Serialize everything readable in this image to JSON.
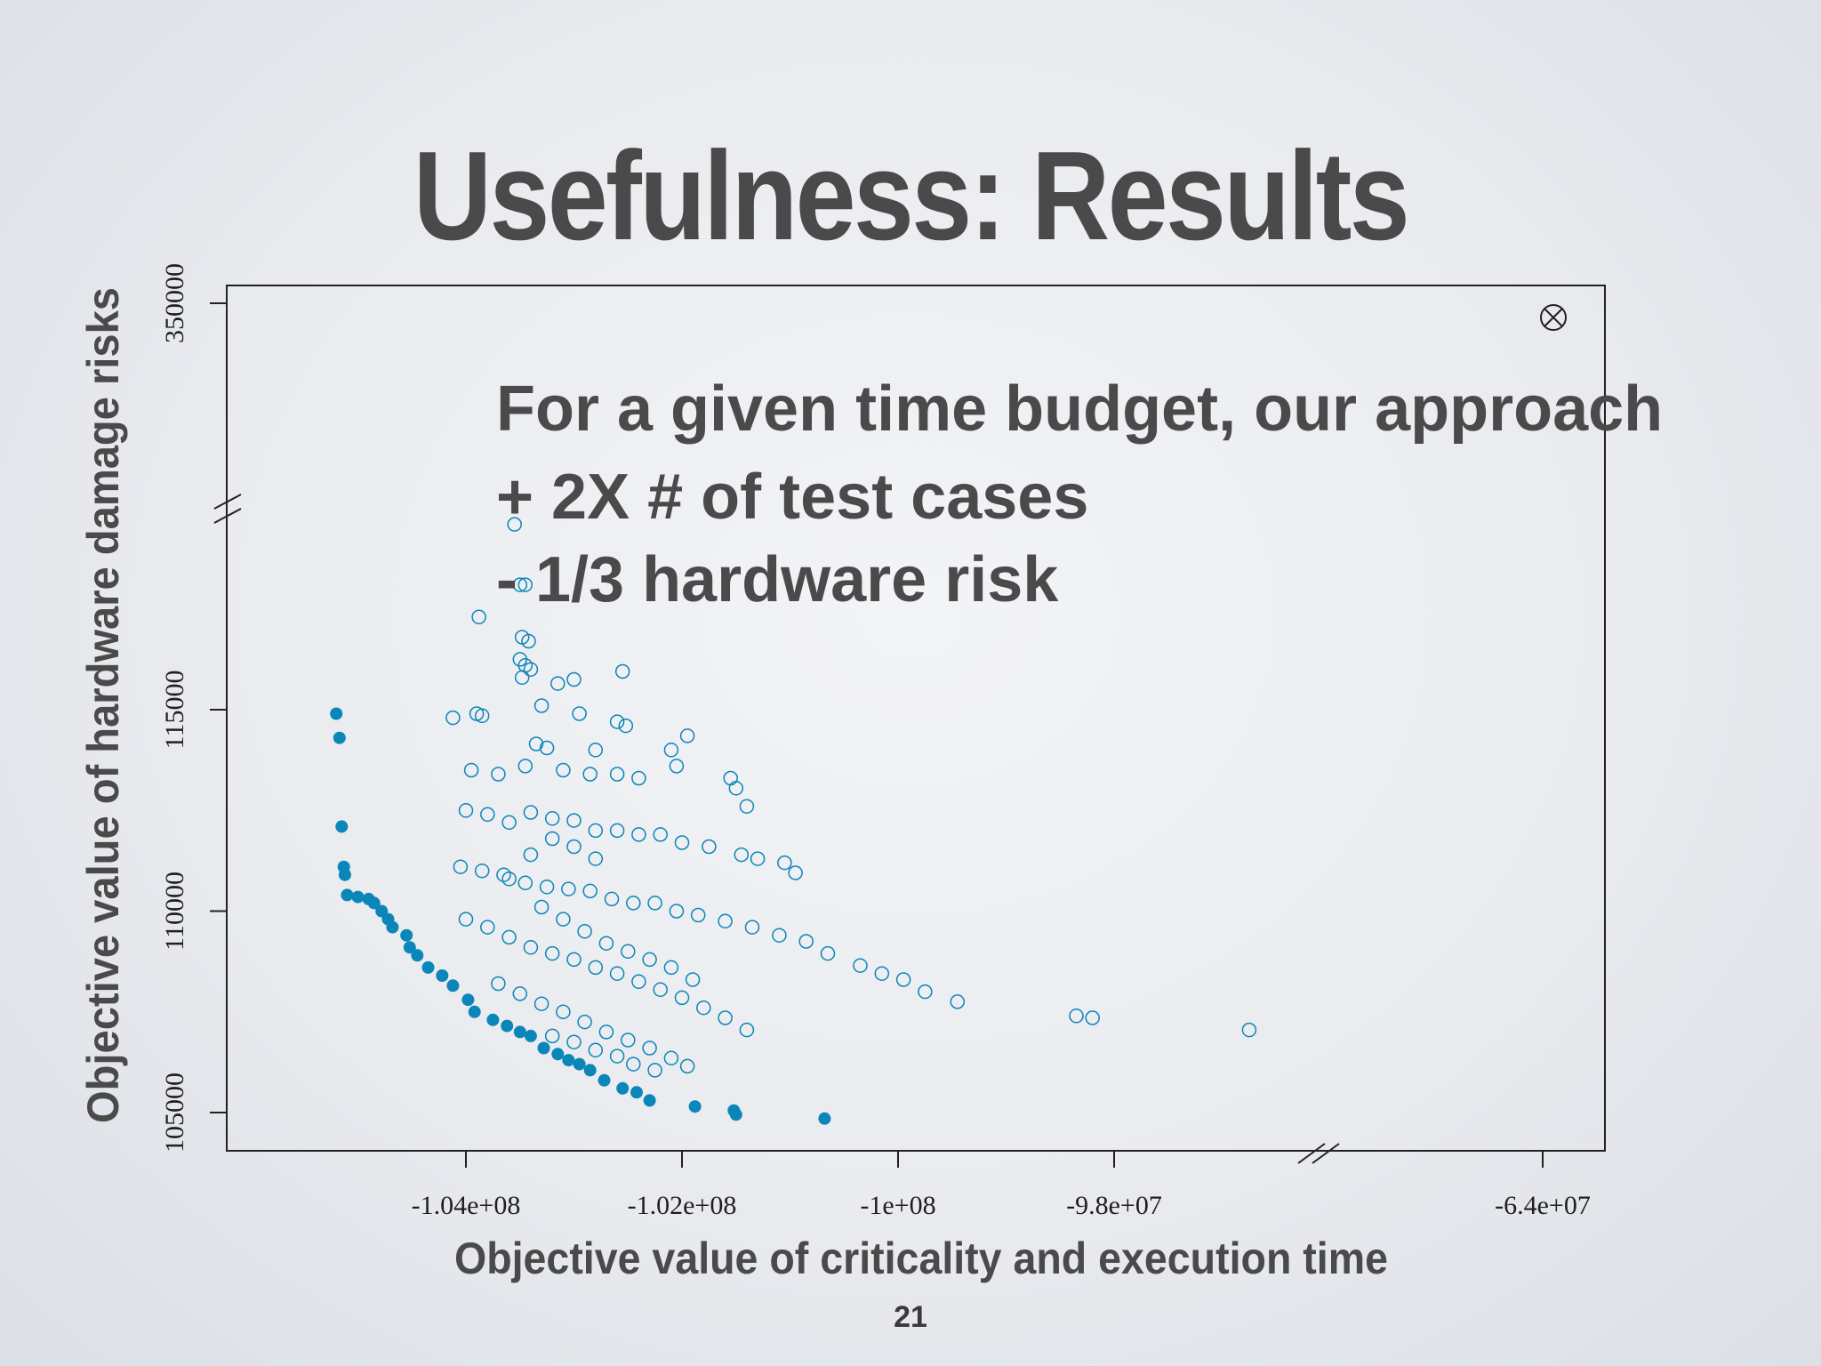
{
  "slide": {
    "title": "Usefulness: Results",
    "page_number": "21",
    "callout_lines": [
      "For a given time budget, our approach",
      "+ 2X # of test cases",
      "- 1/3 hardware risk"
    ]
  },
  "colors": {
    "text": "#4a4a4a",
    "marker": "#0b86b8",
    "axis": "#222222"
  },
  "chart_data": {
    "type": "scatter",
    "title": "Usefulness: Results",
    "xlabel": "Objective value of criticality and execution time",
    "ylabel": "Objective value of hardware damage risks",
    "x_broken_axis": true,
    "y_broken_axis": true,
    "x_segments": [
      [
        -105500000,
        -97000000
      ],
      [
        -64500000,
        -63500000
      ]
    ],
    "y_segments": [
      [
        104000000,
        120000000
      ],
      [
        349000000,
        351000000
      ]
    ],
    "x_ticks": [
      {
        "value": -104000000,
        "label": "-1.04e+08"
      },
      {
        "value": -102000000,
        "label": "-1.02e+08"
      },
      {
        "value": -100000000,
        "label": "-1e+08"
      },
      {
        "value": -98000000,
        "label": "-9.8e+07"
      },
      {
        "value": -64000000,
        "label": "-6.4e+07"
      }
    ],
    "y_ticks": [
      {
        "value": 105000,
        "label": "105000"
      },
      {
        "value": 110000,
        "label": "110000"
      },
      {
        "value": 115000,
        "label": "115000"
      },
      {
        "value": 350000,
        "label": "350000"
      }
    ],
    "series": [
      {
        "marker": "filled-circle",
        "points": [
          [
            -105.2,
            114.9
          ],
          [
            -105.17,
            114.3
          ],
          [
            -105.15,
            112.1
          ],
          [
            -105.13,
            111.1
          ],
          [
            -105.12,
            110.9
          ],
          [
            -105.1,
            110.4
          ],
          [
            -105.0,
            110.35
          ],
          [
            -104.9,
            110.3
          ],
          [
            -104.85,
            110.2
          ],
          [
            -104.78,
            110.0
          ],
          [
            -104.72,
            109.8
          ],
          [
            -104.68,
            109.6
          ],
          [
            -104.55,
            109.4
          ],
          [
            -104.52,
            109.1
          ],
          [
            -104.45,
            108.9
          ],
          [
            -104.35,
            108.6
          ],
          [
            -104.22,
            108.4
          ],
          [
            -104.12,
            108.15
          ],
          [
            -103.98,
            107.8
          ],
          [
            -103.92,
            107.5
          ],
          [
            -103.75,
            107.3
          ],
          [
            -103.62,
            107.15
          ],
          [
            -103.5,
            107.0
          ],
          [
            -103.4,
            106.9
          ],
          [
            -103.28,
            106.6
          ],
          [
            -103.15,
            106.45
          ],
          [
            -103.05,
            106.3
          ],
          [
            -102.95,
            106.2
          ],
          [
            -102.85,
            106.05
          ],
          [
            -102.72,
            105.8
          ],
          [
            -102.55,
            105.6
          ],
          [
            -102.42,
            105.5
          ],
          [
            -102.3,
            105.3
          ],
          [
            -101.88,
            105.15
          ],
          [
            -101.52,
            105.05
          ],
          [
            -101.5,
            104.95
          ],
          [
            -100.68,
            104.85
          ]
        ]
      },
      {
        "marker": "open-circle",
        "points": [
          [
            -103.55,
            119.6
          ],
          [
            -103.5,
            118.1
          ],
          [
            -103.45,
            118.1
          ],
          [
            -103.88,
            117.3
          ],
          [
            -103.48,
            116.8
          ],
          [
            -103.42,
            116.7
          ],
          [
            -103.5,
            116.25
          ],
          [
            -103.45,
            116.1
          ],
          [
            -103.4,
            116.0
          ],
          [
            -103.48,
            115.8
          ],
          [
            -103.0,
            115.75
          ],
          [
            -103.15,
            115.65
          ],
          [
            -102.55,
            115.95
          ],
          [
            -104.12,
            114.8
          ],
          [
            -103.85,
            114.85
          ],
          [
            -103.9,
            114.9
          ],
          [
            -103.3,
            115.1
          ],
          [
            -102.95,
            114.9
          ],
          [
            -102.6,
            114.7
          ],
          [
            -102.52,
            114.6
          ],
          [
            -101.95,
            114.35
          ],
          [
            -103.35,
            114.15
          ],
          [
            -103.25,
            114.05
          ],
          [
            -102.8,
            114.0
          ],
          [
            -102.1,
            114.0
          ],
          [
            -102.05,
            113.6
          ],
          [
            -101.55,
            113.3
          ],
          [
            -103.95,
            113.5
          ],
          [
            -103.7,
            113.4
          ],
          [
            -103.45,
            113.6
          ],
          [
            -103.1,
            113.5
          ],
          [
            -102.85,
            113.4
          ],
          [
            -102.6,
            113.4
          ],
          [
            -102.4,
            113.3
          ],
          [
            -101.5,
            113.05
          ],
          [
            -101.4,
            112.6
          ],
          [
            -104.0,
            112.5
          ],
          [
            -103.8,
            112.4
          ],
          [
            -103.6,
            112.2
          ],
          [
            -103.4,
            112.45
          ],
          [
            -103.2,
            112.3
          ],
          [
            -103.0,
            112.25
          ],
          [
            -102.8,
            112.0
          ],
          [
            -102.6,
            112.0
          ],
          [
            -102.4,
            111.9
          ],
          [
            -102.2,
            111.9
          ],
          [
            -102.0,
            111.7
          ],
          [
            -101.75,
            111.6
          ],
          [
            -101.45,
            111.4
          ],
          [
            -101.3,
            111.3
          ],
          [
            -101.05,
            111.2
          ],
          [
            -100.95,
            110.95
          ],
          [
            -104.05,
            111.1
          ],
          [
            -103.85,
            111.0
          ],
          [
            -103.65,
            110.9
          ],
          [
            -103.45,
            110.7
          ],
          [
            -103.25,
            110.6
          ],
          [
            -103.05,
            110.55
          ],
          [
            -102.85,
            110.5
          ],
          [
            -102.65,
            110.3
          ],
          [
            -102.45,
            110.2
          ],
          [
            -102.25,
            110.2
          ],
          [
            -102.05,
            110.0
          ],
          [
            -101.85,
            109.9
          ],
          [
            -101.6,
            109.75
          ],
          [
            -101.35,
            109.6
          ],
          [
            -101.1,
            109.4
          ],
          [
            -100.85,
            109.25
          ],
          [
            -100.65,
            108.95
          ],
          [
            -100.35,
            108.65
          ],
          [
            -100.15,
            108.45
          ],
          [
            -99.95,
            108.3
          ],
          [
            -99.75,
            108.0
          ],
          [
            -99.45,
            107.75
          ],
          [
            -98.35,
            107.4
          ],
          [
            -98.2,
            107.35
          ],
          [
            -96.75,
            107.05
          ],
          [
            -104.0,
            109.8
          ],
          [
            -103.8,
            109.6
          ],
          [
            -103.6,
            109.35
          ],
          [
            -103.4,
            109.1
          ],
          [
            -103.2,
            108.95
          ],
          [
            -103.0,
            108.8
          ],
          [
            -102.8,
            108.6
          ],
          [
            -102.6,
            108.45
          ],
          [
            -102.4,
            108.25
          ],
          [
            -102.2,
            108.05
          ],
          [
            -102.0,
            107.85
          ],
          [
            -101.8,
            107.6
          ],
          [
            -101.6,
            107.35
          ],
          [
            -101.4,
            107.05
          ],
          [
            -103.7,
            108.2
          ],
          [
            -103.5,
            107.95
          ],
          [
            -103.3,
            107.7
          ],
          [
            -103.1,
            107.5
          ],
          [
            -102.9,
            107.25
          ],
          [
            -102.7,
            107.0
          ],
          [
            -102.5,
            106.8
          ],
          [
            -102.3,
            106.6
          ],
          [
            -102.1,
            106.35
          ],
          [
            -101.95,
            106.15
          ],
          [
            -103.2,
            106.9
          ],
          [
            -103.0,
            106.75
          ],
          [
            -102.8,
            106.55
          ],
          [
            -102.6,
            106.4
          ],
          [
            -102.45,
            106.2
          ],
          [
            -102.25,
            106.05
          ],
          [
            -103.6,
            110.8
          ],
          [
            -103.4,
            111.4
          ],
          [
            -103.2,
            111.8
          ],
          [
            -103.0,
            111.6
          ],
          [
            -102.8,
            111.3
          ],
          [
            -103.3,
            110.1
          ],
          [
            -103.1,
            109.8
          ],
          [
            -102.9,
            109.5
          ],
          [
            -102.7,
            109.2
          ],
          [
            -102.5,
            109.0
          ],
          [
            -102.3,
            108.8
          ],
          [
            -102.1,
            108.6
          ],
          [
            -101.9,
            108.3
          ]
        ]
      }
    ]
  }
}
